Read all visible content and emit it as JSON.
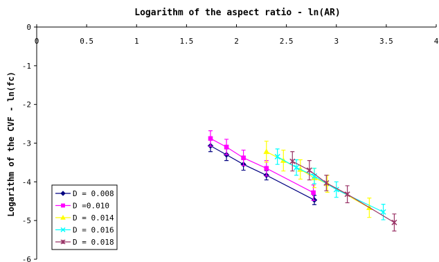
{
  "chart_data": {
    "type": "line",
    "title": "Logarithm of the aspect ratio - ln(AR)",
    "xlabel": "Logarithm of the aspect ratio - ln(AR)",
    "ylabel": "Logarithm of the CVF - ln(fc)",
    "xlim": [
      0,
      4
    ],
    "ylim": [
      -6,
      0
    ],
    "x_ticks": [
      "0",
      "0.5",
      "1",
      "1.5",
      "2",
      "2.5",
      "3",
      "3.5",
      "4"
    ],
    "y_ticks": [
      "0",
      "-1",
      "-2",
      "-3",
      "-4",
      "-5",
      "-6"
    ],
    "x_axis_position": "top",
    "grid": false,
    "error_bars": true,
    "legend_position": "bottom-left",
    "series": [
      {
        "name": "D = 0.008",
        "color": "#000080",
        "marker": "diamond",
        "x": [
          1.74,
          1.9,
          2.07,
          2.3,
          2.78
        ],
        "y": [
          -3.07,
          -3.3,
          -3.55,
          -3.83,
          -4.47
        ],
        "err": [
          0.15,
          0.15,
          0.15,
          0.12,
          0.12
        ]
      },
      {
        "name": "D =0.010",
        "color": "#ff00ff",
        "marker": "square",
        "x": [
          1.74,
          1.9,
          2.07,
          2.3,
          2.77
        ],
        "y": [
          -2.88,
          -3.1,
          -3.38,
          -3.65,
          -4.28
        ],
        "err": [
          0.2,
          0.2,
          0.2,
          0.2,
          0.2
        ]
      },
      {
        "name": "D = 0.014",
        "color": "#ffff00",
        "marker": "triangle",
        "x": [
          2.3,
          2.47,
          2.64,
          2.78,
          2.91,
          3.33
        ],
        "y": [
          -3.22,
          -3.45,
          -3.68,
          -3.9,
          -4.05,
          -4.67
        ],
        "err": [
          0.27,
          0.27,
          0.25,
          0.25,
          0.22,
          0.25
        ]
      },
      {
        "name": "D = 0.016",
        "color": "#00ffff",
        "marker": "x",
        "x": [
          2.41,
          2.6,
          2.78,
          3.0,
          3.47
        ],
        "y": [
          -3.35,
          -3.63,
          -3.85,
          -4.2,
          -4.78
        ],
        "err": [
          0.2,
          0.2,
          0.2,
          0.2,
          0.2
        ]
      },
      {
        "name": "D = 0.018",
        "color": "#993366",
        "marker": "star",
        "x": [
          2.56,
          2.73,
          2.9,
          3.11,
          3.58
        ],
        "y": [
          -3.47,
          -3.7,
          -4.03,
          -4.32,
          -5.05
        ],
        "err": [
          0.25,
          0.25,
          0.2,
          0.22,
          0.22
        ]
      }
    ]
  }
}
